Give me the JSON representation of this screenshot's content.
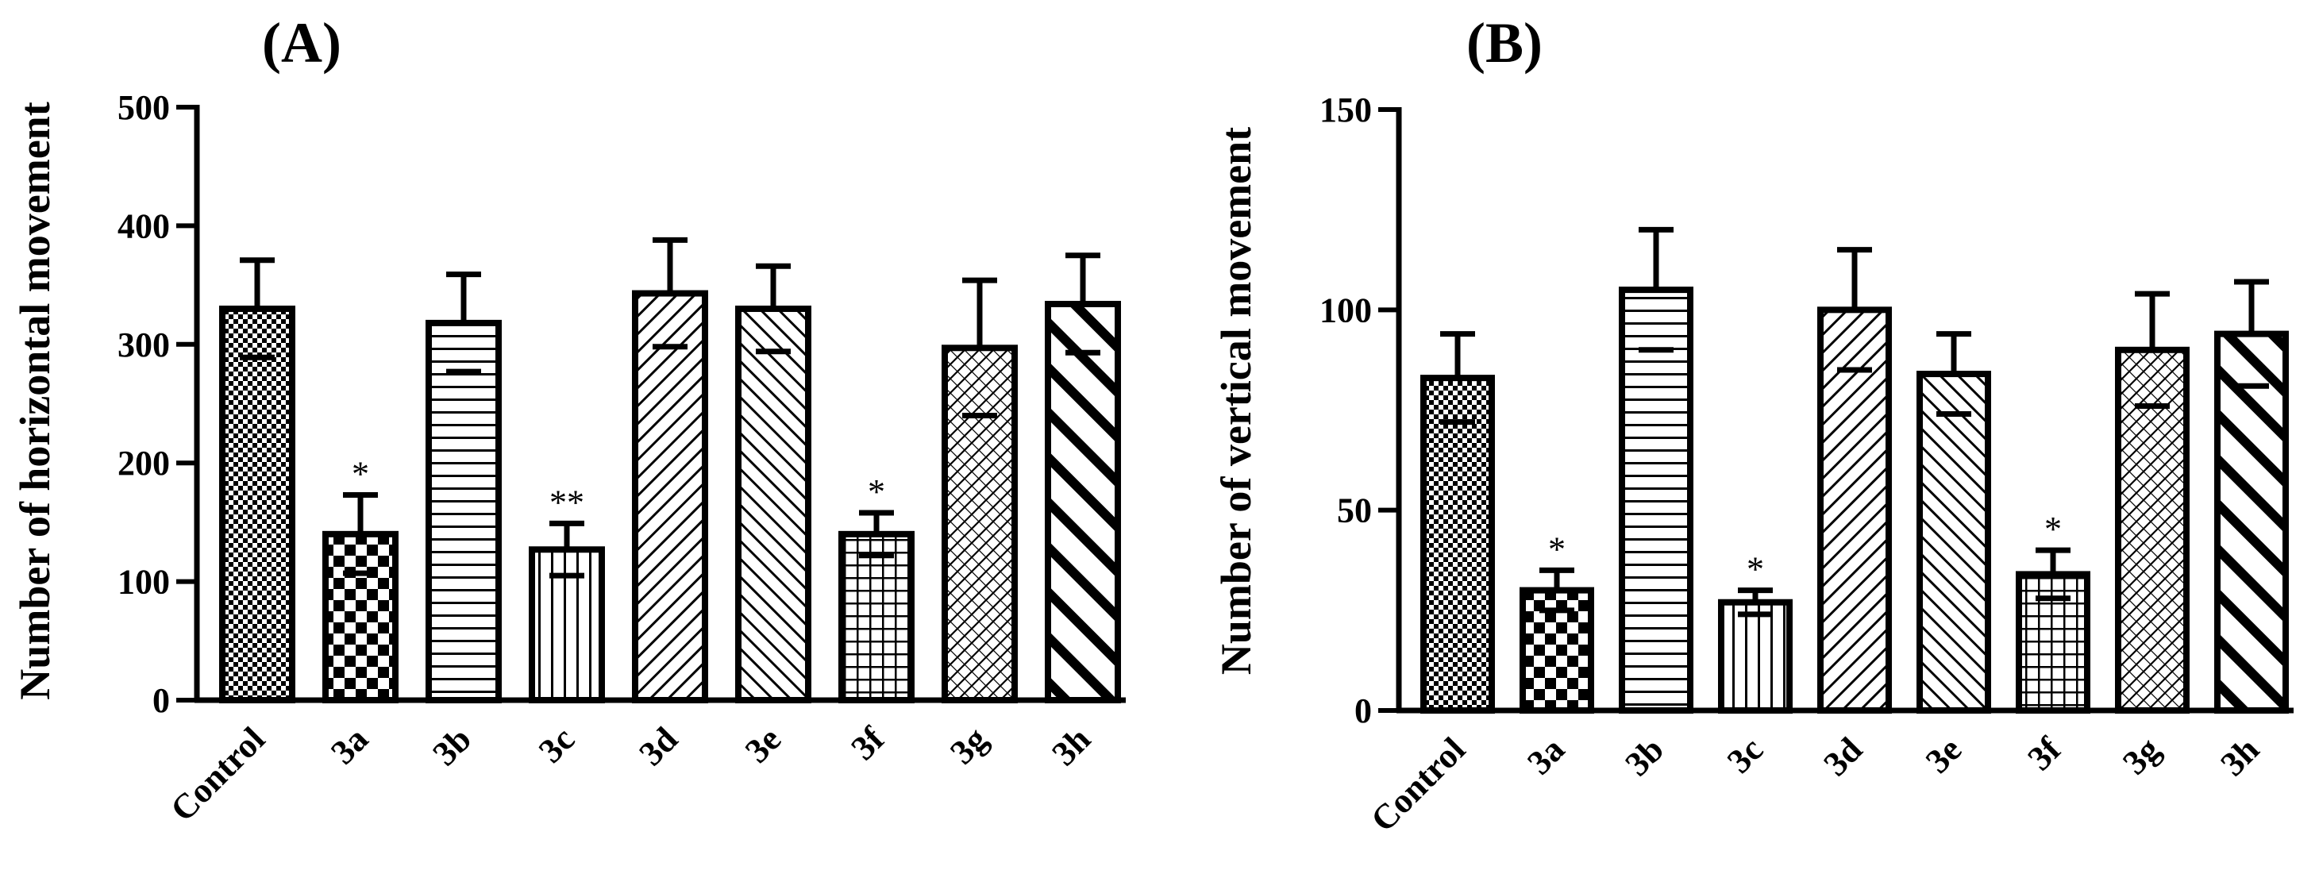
{
  "chart_data": [
    {
      "type": "bar",
      "panel_label": "(A)",
      "title": "",
      "xlabel": "",
      "ylabel": "Number of horizontal movement",
      "ylim": [
        0,
        500
      ],
      "yticks": [
        0,
        100,
        200,
        300,
        400,
        500
      ],
      "categories": [
        "Control",
        "3a",
        "3b",
        "3c",
        "3d",
        "3e",
        "3f",
        "3g",
        "3h"
      ],
      "values": [
        330,
        140,
        318,
        127,
        343,
        330,
        140,
        297,
        334
      ],
      "errors": [
        41,
        33,
        41,
        22,
        45,
        36,
        18,
        57,
        41
      ],
      "significance": [
        "",
        "*",
        "",
        "**",
        "",
        "",
        "*",
        "",
        ""
      ],
      "patterns": [
        "dots",
        "checker",
        "hlines",
        "vlines",
        "fdiag",
        "bdiag",
        "grid",
        "crosshatch",
        "thickdiag"
      ]
    },
    {
      "type": "bar",
      "panel_label": "(B)",
      "title": "",
      "xlabel": "",
      "ylabel": "Number of vertical movement",
      "ylim": [
        0,
        150
      ],
      "yticks": [
        0,
        50,
        100,
        150
      ],
      "categories": [
        "Control",
        "3a",
        "3b",
        "3c",
        "3d",
        "3e",
        "3f",
        "3g",
        "3h"
      ],
      "values": [
        83,
        30,
        105,
        27,
        100,
        84,
        34,
        90,
        94
      ],
      "errors": [
        11,
        5,
        15,
        3,
        15,
        10,
        6,
        14,
        13
      ],
      "significance": [
        "",
        "*",
        "",
        "*",
        "",
        "",
        "*",
        "",
        ""
      ],
      "patterns": [
        "dots",
        "checker",
        "hlines",
        "vlines",
        "fdiag",
        "bdiag",
        "grid",
        "crosshatch",
        "thickdiag"
      ]
    }
  ]
}
